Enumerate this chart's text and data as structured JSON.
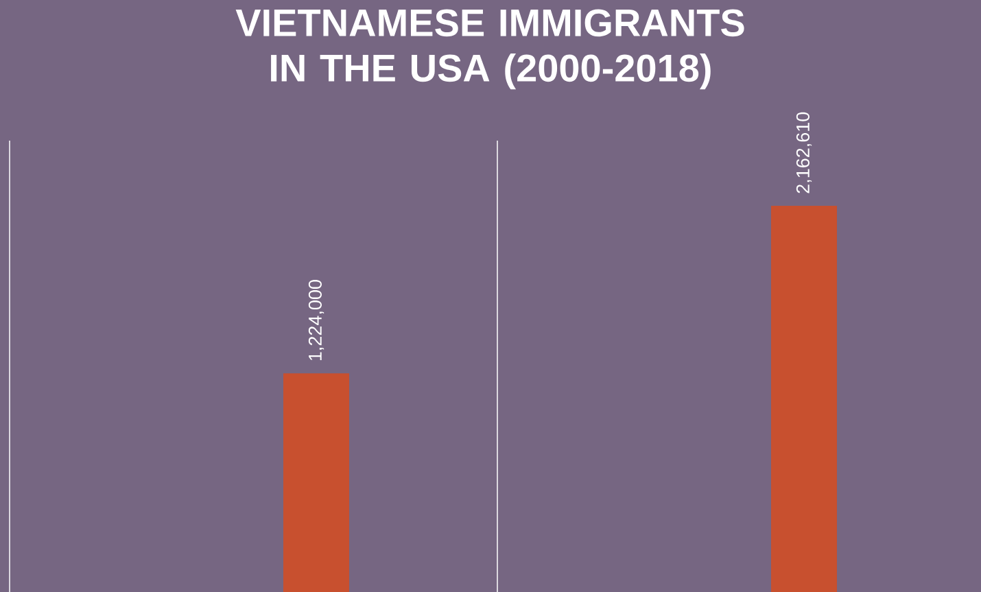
{
  "chart_data": {
    "type": "bar",
    "title": "VIETNAMESE IMMIGRANTS IN THE USA (2000-2018)",
    "categories": [
      null,
      null
    ],
    "values": [
      1224000,
      2162610
    ],
    "color": "#c8502f",
    "value_labels": [
      "1,224,000",
      "2,162,610"
    ]
  }
}
